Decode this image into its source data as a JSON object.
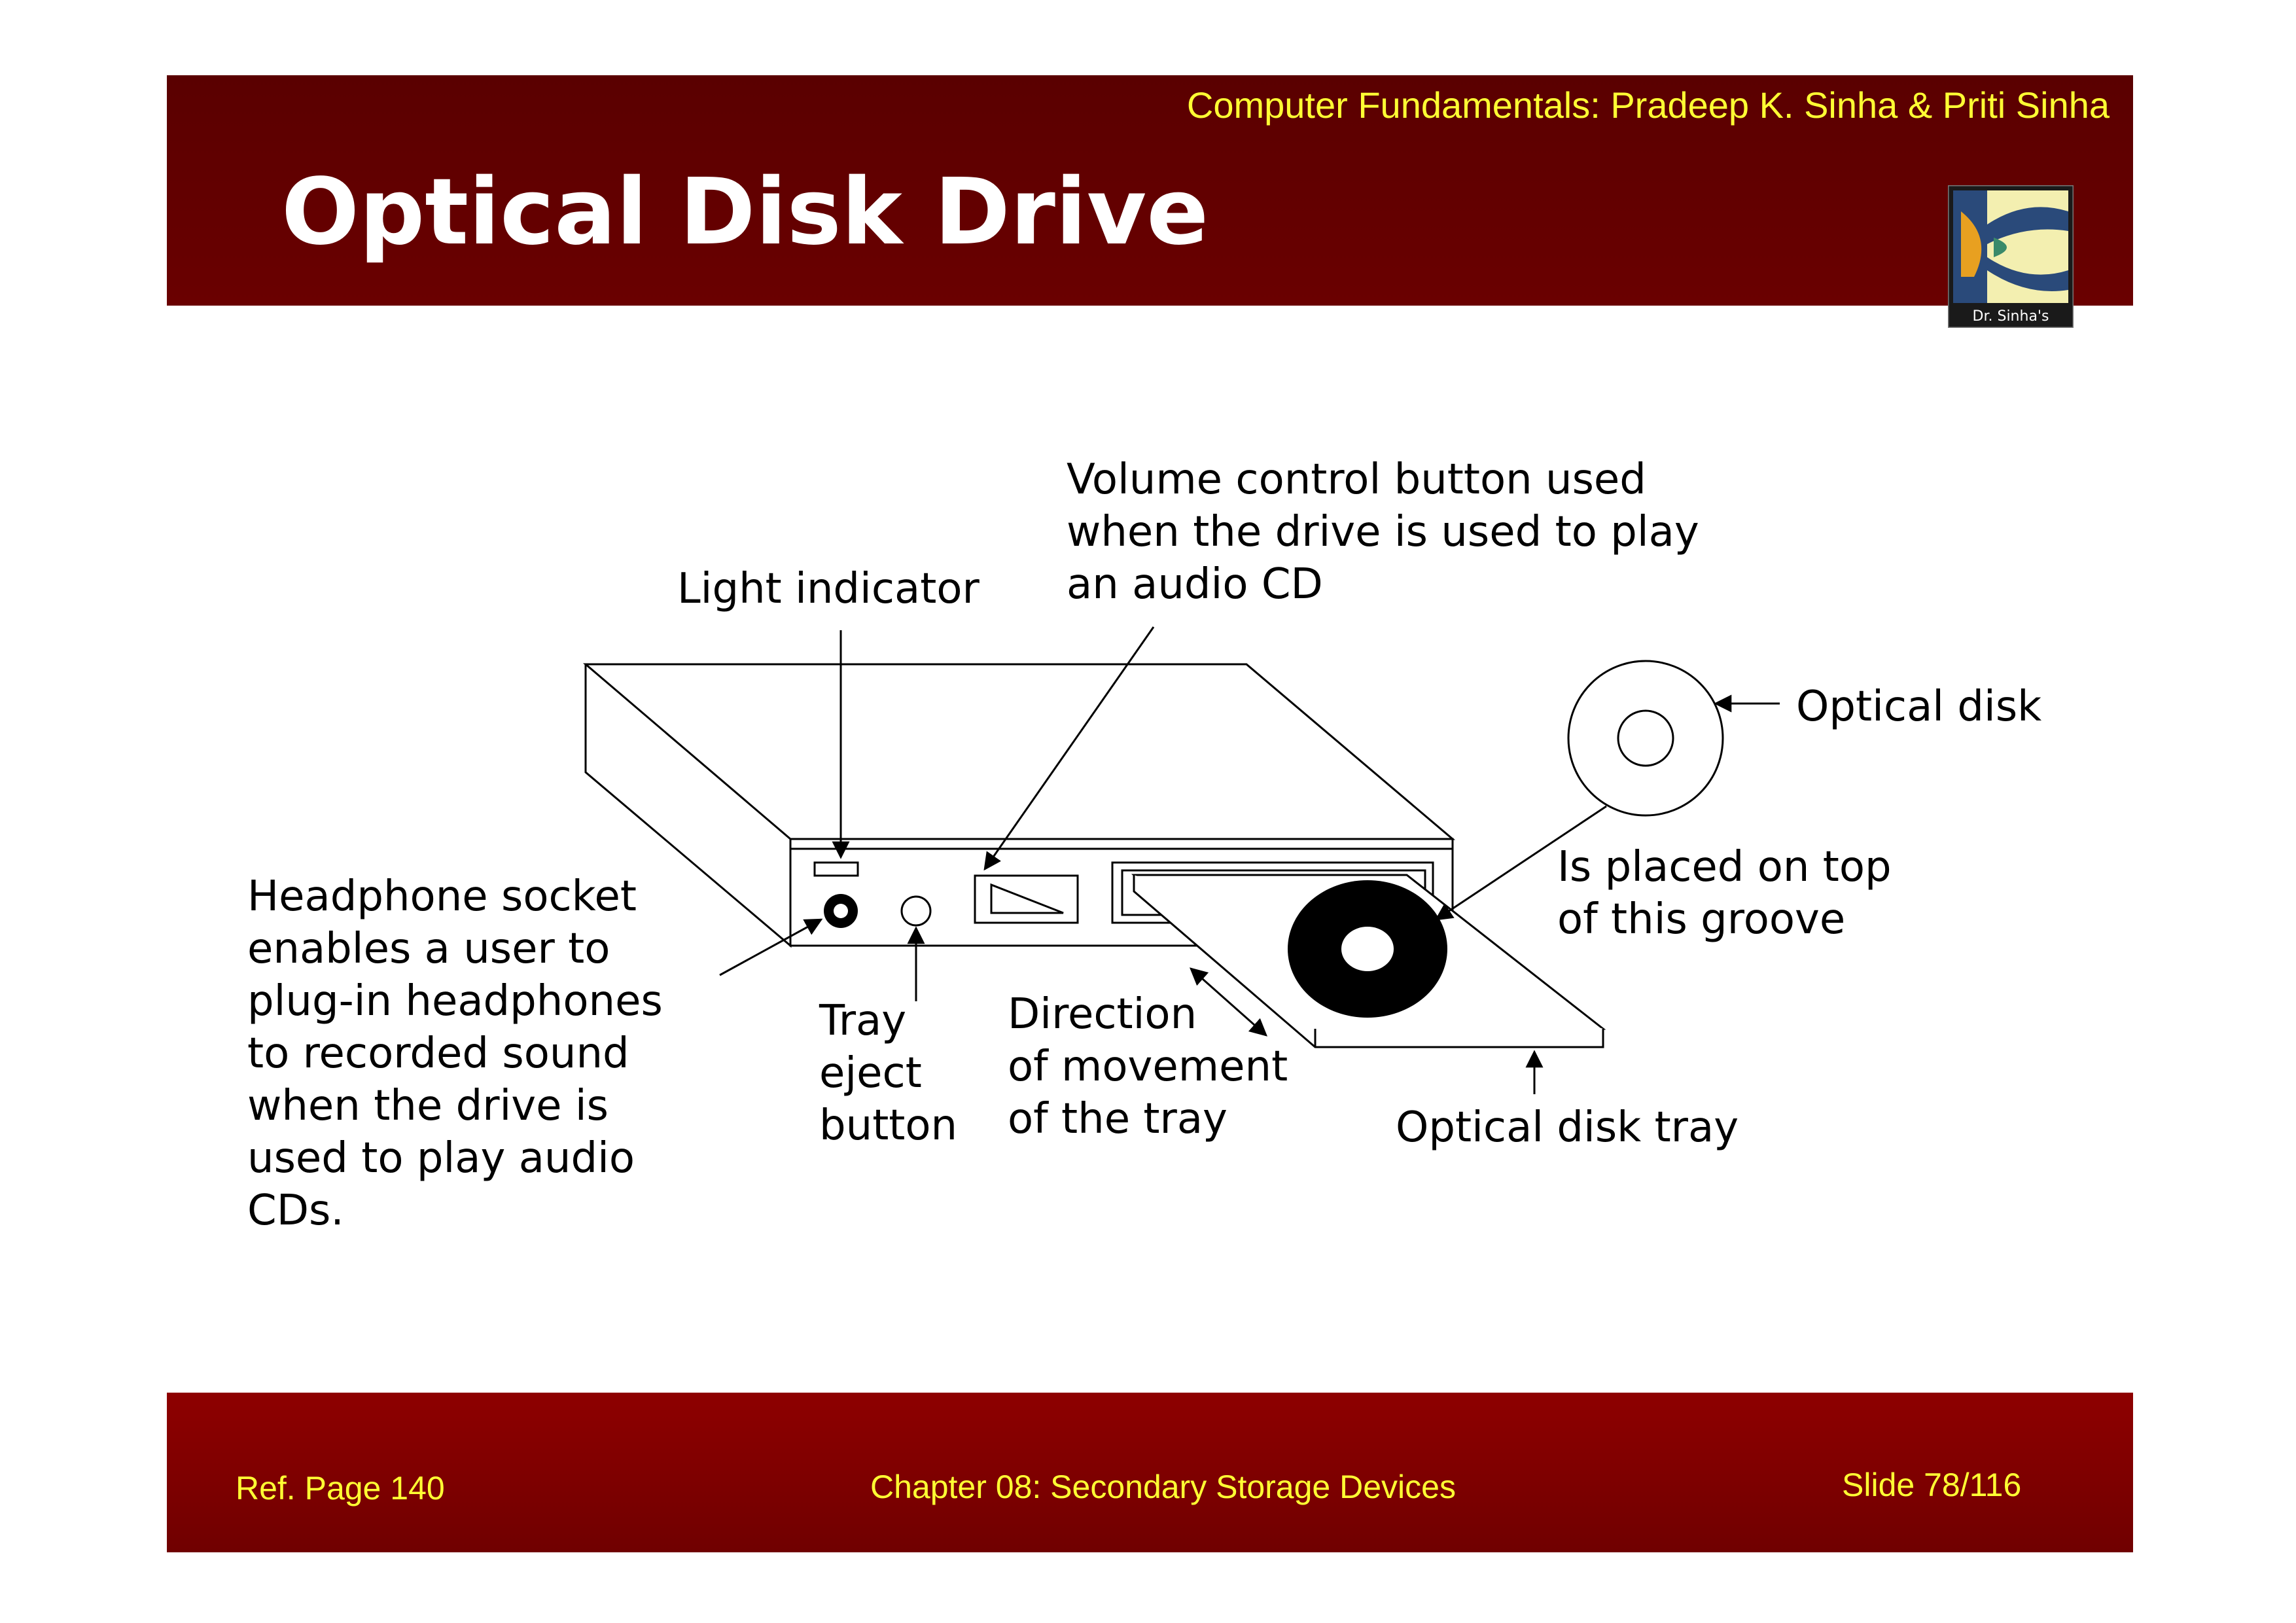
{
  "header": {
    "credit": "Computer Fundamentals: Pradeep K. Sinha & Priti Sinha",
    "title": "Optical Disk Drive",
    "logo_text": "Dr. Sinha's"
  },
  "diagram": {
    "light_indicator": "Light indicator",
    "volume_control": [
      "Volume control button used",
      "when the drive is used to play",
      "an audio CD"
    ],
    "optical_disk": "Optical disk",
    "groove": [
      "Is placed on top",
      "of this groove"
    ],
    "headphone_socket": [
      "Headphone socket",
      "enables a user to",
      "plug-in headphones",
      "to recorded sound",
      "when the drive is",
      "used to play audio",
      "CDs."
    ],
    "tray_eject": [
      "Tray",
      "eject",
      "button"
    ],
    "direction": [
      "Direction",
      "of movement",
      "of the tray"
    ],
    "disk_tray": "Optical disk tray"
  },
  "footer": {
    "ref_page": "Ref. Page  140",
    "chapter": "Chapter 08: Secondary Storage Devices",
    "slide": "Slide 78/116"
  }
}
